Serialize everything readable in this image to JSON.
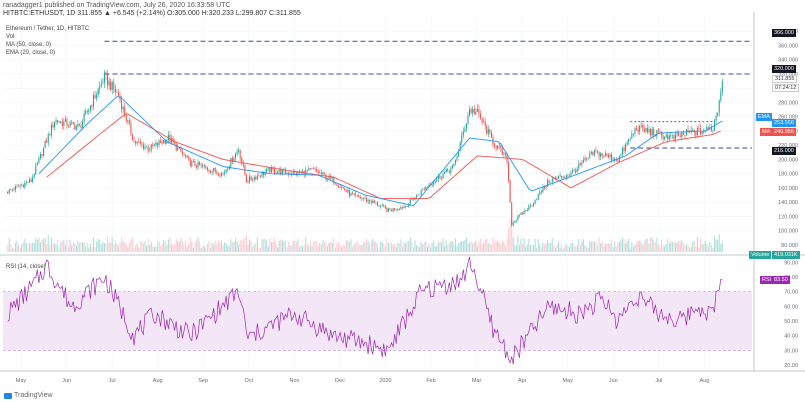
{
  "header": {
    "published": "ranadagger1 published on TradingView.com, July 26, 2020 16:33:58 UTC",
    "symbol": "HITBTC:ETHUSDT, 1D  311.855  ▲ +6.545 (+2.14%)  O:305.000  H:320.233  L:299.807  C:311.855",
    "title": "Ethereum / Tether, 1D, HITBTC",
    "vol_label": "Vol",
    "ma_label": "MA (50, close, 0)",
    "ema_label": "EMA (20, close, 0)",
    "rsi_label": "RSI (14, close)"
  },
  "price_tags": {
    "h366": "366.000",
    "h320": "320.000",
    "last_price": "311.855",
    "last_time": "07:24:12",
    "ema_tag": "EMA",
    "ema_value": "253.556",
    "ma_tag": "MA",
    "ma_value": "240.956",
    "h216": "216.000",
    "volume_tag": "Volume",
    "volume_value": "419.031K",
    "rsi_tag": "RSI",
    "rsi_value": "83.50"
  },
  "colors": {
    "up": "#26a69a",
    "down": "#ef5350",
    "ma": "#ef5350",
    "ema": "#2196f3",
    "hline": "#3949ab",
    "rsi": "#9c27b0",
    "rsi_band": "#f3e6f7"
  },
  "footer": {
    "logo": "TradingView"
  },
  "chart_data": {
    "type": "candlestick",
    "title": "Ethereum / Tether, 1D, HITBTC",
    "price_axis": {
      "range": [
        70,
        400
      ],
      "ticks": [
        380,
        360,
        340,
        320,
        300,
        280,
        260,
        240,
        220,
        200,
        180,
        160,
        140,
        120,
        100,
        80
      ]
    },
    "rsi_axis": {
      "range": [
        18,
        93
      ],
      "ticks": [
        90,
        80,
        70,
        60,
        50,
        40,
        30,
        20
      ],
      "band": [
        30,
        70
      ]
    },
    "x_labels": [
      "May",
      "Jun",
      "Jul",
      "Aug",
      "Sep",
      "Oct",
      "Nov",
      "Dec",
      "2020",
      "Feb",
      "Mar",
      "Apr",
      "May",
      "Jun",
      "Jul",
      "Aug"
    ],
    "horizontal_levels": [
      366,
      320,
      216
    ],
    "price_anchors": [
      [
        "2019-04-25",
        155
      ],
      [
        "2019-05-10",
        170
      ],
      [
        "2019-05-25",
        255
      ],
      [
        "2019-06-10",
        245
      ],
      [
        "2019-06-26",
        315
      ],
      [
        "2019-07-05",
        290
      ],
      [
        "2019-07-15",
        225
      ],
      [
        "2019-07-25",
        215
      ],
      [
        "2019-08-06",
        230
      ],
      [
        "2019-08-20",
        195
      ],
      [
        "2019-09-10",
        180
      ],
      [
        "2019-09-20",
        215
      ],
      [
        "2019-09-25",
        170
      ],
      [
        "2019-10-10",
        185
      ],
      [
        "2019-10-26",
        180
      ],
      [
        "2019-11-07",
        185
      ],
      [
        "2019-11-20",
        170
      ],
      [
        "2019-12-01",
        150
      ],
      [
        "2019-12-15",
        140
      ],
      [
        "2019-12-25",
        128
      ],
      [
        "2020-01-05",
        135
      ],
      [
        "2020-01-20",
        165
      ],
      [
        "2020-02-05",
        190
      ],
      [
        "2020-02-15",
        270
      ],
      [
        "2020-02-20",
        265
      ],
      [
        "2020-03-01",
        225
      ],
      [
        "2020-03-10",
        200
      ],
      [
        "2020-03-13",
        110
      ],
      [
        "2020-03-25",
        135
      ],
      [
        "2020-04-06",
        170
      ],
      [
        "2020-04-20",
        180
      ],
      [
        "2020-05-05",
        210
      ],
      [
        "2020-05-20",
        200
      ],
      [
        "2020-06-01",
        245
      ],
      [
        "2020-06-15",
        235
      ],
      [
        "2020-06-25",
        230
      ],
      [
        "2020-07-05",
        238
      ],
      [
        "2020-07-15",
        240
      ],
      [
        "2020-07-20",
        245
      ],
      [
        "2020-07-23",
        270
      ],
      [
        "2020-07-26",
        312
      ]
    ],
    "ma50_anchors": [
      [
        "2019-05-20",
        175
      ],
      [
        "2019-06-20",
        230
      ],
      [
        "2019-07-10",
        265
      ],
      [
        "2019-08-10",
        225
      ],
      [
        "2019-09-10",
        200
      ],
      [
        "2019-10-20",
        185
      ],
      [
        "2019-11-20",
        175
      ],
      [
        "2019-12-20",
        145
      ],
      [
        "2020-01-20",
        145
      ],
      [
        "2020-02-20",
        205
      ],
      [
        "2020-03-20",
        200
      ],
      [
        "2020-04-20",
        160
      ],
      [
        "2020-05-20",
        195
      ],
      [
        "2020-06-20",
        225
      ],
      [
        "2020-07-20",
        235
      ],
      [
        "2020-07-26",
        241
      ]
    ],
    "ema20_anchors": [
      [
        "2019-05-15",
        180
      ],
      [
        "2019-06-15",
        250
      ],
      [
        "2019-07-05",
        290
      ],
      [
        "2019-08-05",
        225
      ],
      [
        "2019-09-10",
        190
      ],
      [
        "2019-10-10",
        180
      ],
      [
        "2019-11-10",
        178
      ],
      [
        "2019-12-10",
        150
      ],
      [
        "2020-01-10",
        135
      ],
      [
        "2020-02-15",
        230
      ],
      [
        "2020-03-05",
        225
      ],
      [
        "2020-03-25",
        155
      ],
      [
        "2020-04-25",
        180
      ],
      [
        "2020-05-25",
        205
      ],
      [
        "2020-06-15",
        237
      ],
      [
        "2020-07-15",
        240
      ],
      [
        "2020-07-26",
        254
      ]
    ],
    "rsi_anchors": [
      [
        "2019-04-25",
        55
      ],
      [
        "2019-05-12",
        75
      ],
      [
        "2019-05-20",
        88
      ],
      [
        "2019-06-05",
        60
      ],
      [
        "2019-06-26",
        80
      ],
      [
        "2019-07-15",
        40
      ],
      [
        "2019-07-28",
        55
      ],
      [
        "2019-08-20",
        40
      ],
      [
        "2019-09-20",
        70
      ],
      [
        "2019-09-26",
        38
      ],
      [
        "2019-10-25",
        55
      ],
      [
        "2019-11-20",
        40
      ],
      [
        "2019-12-10",
        35
      ],
      [
        "2019-12-25",
        30
      ],
      [
        "2020-01-15",
        70
      ],
      [
        "2020-02-10",
        78
      ],
      [
        "2020-02-16",
        90
      ],
      [
        "2020-03-01",
        45
      ],
      [
        "2020-03-13",
        24
      ],
      [
        "2020-04-06",
        60
      ],
      [
        "2020-04-25",
        55
      ],
      [
        "2020-05-10",
        65
      ],
      [
        "2020-05-20",
        50
      ],
      [
        "2020-06-01",
        68
      ],
      [
        "2020-06-15",
        55
      ],
      [
        "2020-06-30",
        50
      ],
      [
        "2020-07-10",
        60
      ],
      [
        "2020-07-20",
        55
      ],
      [
        "2020-07-26",
        83.5
      ]
    ]
  }
}
